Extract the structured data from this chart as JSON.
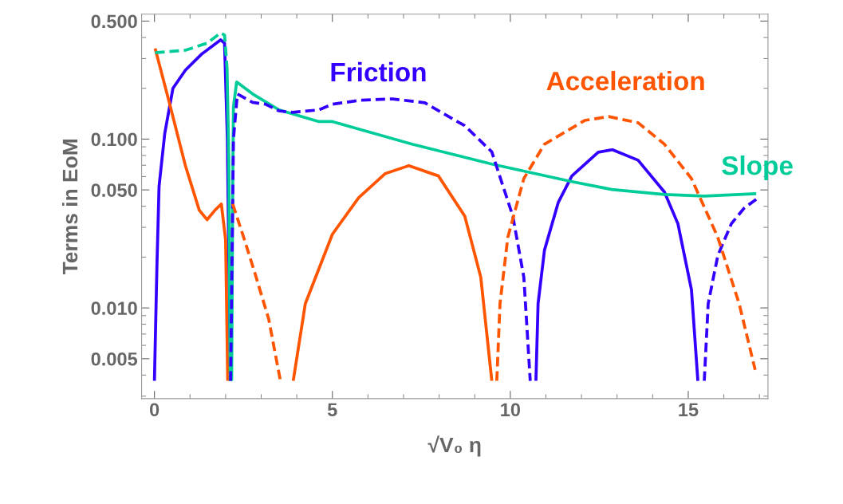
{
  "chart_data": {
    "type": "line",
    "xlabel": "√V₀ η",
    "ylabel": "Terms in EoM",
    "log": "y",
    "grid": false,
    "legend": false,
    "xlim": [
      -0.36,
      17.24
    ],
    "xticks": [
      0,
      5,
      10,
      15
    ],
    "ylim": [
      0.0029,
      0.55
    ],
    "yticks": [
      {
        "value": 0.005,
        "label": "0.005"
      },
      {
        "value": 0.01,
        "label": "0.010"
      },
      {
        "value": 0.05,
        "label": "0.050"
      },
      {
        "value": 0.1,
        "label": "0.100"
      },
      {
        "value": 0.5,
        "label": "0.500"
      }
    ],
    "series": [
      {
        "name": "Friction",
        "color": "#3300ff",
        "line_style": "solid",
        "x": [
          0,
          0.07,
          0.13,
          0.29,
          0.52,
          0.87,
          1.32,
          1.86,
          1.97,
          2.05,
          2.13
        ],
        "values": [
          0.0037,
          0.0177,
          0.0525,
          0.108,
          0.2,
          0.256,
          0.318,
          0.387,
          0.37,
          0.1,
          0.0037
        ]
      },
      {
        "color": "#3300ff",
        "line_style": "dashed",
        "x": [
          2.14,
          2.22,
          2.33,
          2.76,
          3.12,
          3.5,
          3.88,
          4.62,
          5.0,
          5.8,
          6.7,
          7.6,
          8.72,
          9.48,
          10.07,
          10.38,
          10.56
        ],
        "values": [
          0.0037,
          0.1,
          0.185,
          0.165,
          0.161,
          0.147,
          0.144,
          0.149,
          0.161,
          0.17,
          0.173,
          0.164,
          0.12,
          0.084,
          0.035,
          0.0152,
          0.0037
        ]
      },
      {
        "color": "#3300ff",
        "line_style": "solid",
        "x": [
          10.72,
          10.78,
          10.96,
          11.35,
          11.73,
          12.47,
          12.87,
          13.59,
          14.33,
          14.71,
          15.09,
          15.27
        ],
        "values": [
          0.0037,
          0.0106,
          0.022,
          0.0423,
          0.0605,
          0.0837,
          0.0865,
          0.075,
          0.0486,
          0.0315,
          0.0128,
          0.0037
        ]
      },
      {
        "color": "#3300ff",
        "line_style": "dashed",
        "x": [
          15.45,
          15.56,
          15.83,
          16.21,
          16.57,
          16.91
        ],
        "values": [
          0.0037,
          0.0106,
          0.0204,
          0.0315,
          0.039,
          0.044
        ]
      },
      {
        "name": "Acceleration",
        "color": "#ff5500",
        "line_style": "solid",
        "x": [
          0.02,
          0.43,
          0.87,
          1.26,
          1.48,
          1.7,
          1.88,
          2.0,
          2.06
        ],
        "values": [
          0.344,
          0.161,
          0.0696,
          0.0379,
          0.0333,
          0.0379,
          0.0413,
          0.0253,
          0.0037
        ]
      },
      {
        "color": "#ff5500",
        "line_style": "dashed",
        "x": [
          2.2,
          2.53,
          2.83,
          3.21,
          3.54
        ],
        "values": [
          0.0413,
          0.0253,
          0.0159,
          0.0086,
          0.0037
        ]
      },
      {
        "color": "#ff5500",
        "line_style": "solid",
        "x": [
          3.9,
          4.24,
          5.0,
          5.74,
          6.48,
          7.15,
          7.98,
          8.72,
          9.17,
          9.48
        ],
        "values": [
          0.0037,
          0.0106,
          0.0273,
          0.045,
          0.0624,
          0.0696,
          0.0605,
          0.035,
          0.0152,
          0.0037
        ]
      },
      {
        "color": "#ff5500",
        "line_style": "dashed",
        "x": [
          9.62,
          9.71,
          9.93,
          10.38,
          10.96,
          12.09,
          12.76,
          13.59,
          14.33,
          15.09,
          15.83,
          16.43,
          16.88
        ],
        "values": [
          0.0037,
          0.0106,
          0.0262,
          0.0584,
          0.0933,
          0.129,
          0.136,
          0.125,
          0.0933,
          0.0584,
          0.0262,
          0.0106,
          0.0043
        ]
      },
      {
        "color": "#00cc99",
        "line_style": "dashed",
        "x": [
          0.02,
          0.87,
          1.48,
          1.86,
          1.97,
          2.04
        ],
        "values": [
          0.325,
          0.336,
          0.37,
          0.426,
          0.413,
          0.265
        ]
      },
      {
        "color": "#00cc99",
        "line_style": "solid",
        "x": [
          2.04,
          2.09,
          2.13
        ],
        "values": [
          0.265,
          0.075,
          0.0037
        ]
      },
      {
        "name": "Slope",
        "color": "#00cc99",
        "line_style": "solid",
        "x": [
          2.17,
          2.2,
          2.22,
          2.31,
          2.76,
          3.5,
          4.62,
          5.0,
          7.24,
          9.48,
          11.73,
          12.85,
          14.33,
          15.45,
          16.91
        ],
        "values": [
          0.0037,
          0.0525,
          0.155,
          0.218,
          0.185,
          0.149,
          0.127,
          0.127,
          0.0933,
          0.0711,
          0.056,
          0.0503,
          0.047,
          0.046,
          0.0475
        ]
      }
    ]
  }
}
